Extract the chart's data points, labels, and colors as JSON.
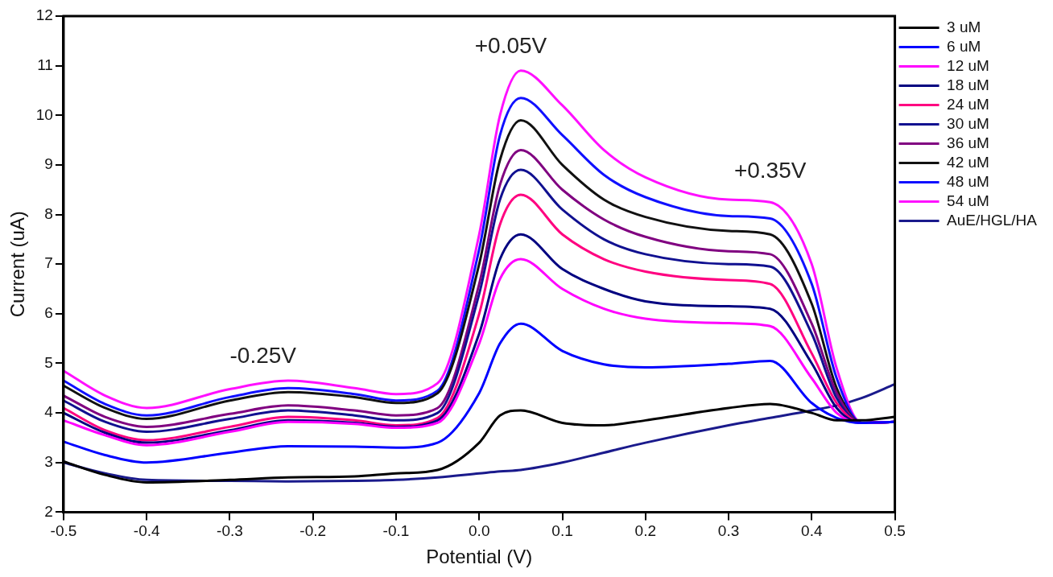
{
  "chart_data": {
    "type": "line",
    "xlabel": "Potential (V)",
    "ylabel": "Current (uA)",
    "x": [
      -0.5,
      -0.45,
      -0.4,
      -0.3,
      -0.23,
      -0.15,
      -0.1,
      -0.05,
      0,
      0.025,
      0.05,
      0.1,
      0.15,
      0.2,
      0.3,
      0.35,
      0.4,
      0.43,
      0.46,
      0.5
    ],
    "xlim": [
      -0.5,
      0.5
    ],
    "xticks": [
      {
        "value": -0.5,
        "label": "-0.5"
      },
      {
        "value": -0.4,
        "label": "-0.4"
      },
      {
        "value": -0.3,
        "label": "-0.3"
      },
      {
        "value": -0.2,
        "label": "-0.2"
      },
      {
        "value": -0.1,
        "label": "-0.1"
      },
      {
        "value": 0,
        "label": "0.0"
      },
      {
        "value": 0.1,
        "label": "0.1"
      },
      {
        "value": 0.2,
        "label": "0.2"
      },
      {
        "value": 0.3,
        "label": "0.3"
      },
      {
        "value": 0.4,
        "label": "0.4"
      },
      {
        "value": 0.5,
        "label": "0.5"
      }
    ],
    "ylim": [
      2,
      12
    ],
    "yticks": [
      2,
      3,
      4,
      5,
      6,
      7,
      8,
      9,
      10,
      11,
      12
    ],
    "grid": false,
    "legend": "right",
    "marker": "none",
    "line_style": "solid",
    "annotations": [
      "-0.25V",
      "+0.05V",
      "+0.35V"
    ],
    "series": [
      {
        "name": "3 uM",
        "color": "#000000",
        "values": [
          3.02,
          2.75,
          2.6,
          2.65,
          2.7,
          2.72,
          2.78,
          2.85,
          3.4,
          3.95,
          4.05,
          3.8,
          3.75,
          3.85,
          4.1,
          4.18,
          4.0,
          3.85,
          3.85,
          3.92
        ]
      },
      {
        "name": "6 uM",
        "color": "#0000ff",
        "values": [
          3.42,
          3.15,
          3.0,
          3.2,
          3.33,
          3.32,
          3.3,
          3.4,
          4.4,
          5.4,
          5.8,
          5.25,
          4.98,
          4.92,
          4.99,
          5.05,
          4.2,
          3.9,
          3.8,
          3.82
        ]
      },
      {
        "name": "12 uM",
        "color": "#ff00ff",
        "values": [
          3.85,
          3.55,
          3.35,
          3.62,
          3.82,
          3.78,
          3.7,
          3.8,
          5.4,
          6.7,
          7.1,
          6.5,
          6.1,
          5.9,
          5.81,
          5.75,
          4.7,
          4.0,
          3.8,
          3.82
        ]
      },
      {
        "name": "18 uM",
        "color": "#000080",
        "values": [
          4.0,
          3.6,
          3.4,
          3.65,
          3.85,
          3.8,
          3.72,
          3.85,
          5.6,
          7.1,
          7.6,
          6.9,
          6.5,
          6.25,
          6.15,
          6.1,
          5.0,
          4.1,
          3.8,
          3.82
        ]
      },
      {
        "name": "24 uM",
        "color": "#ff0080",
        "values": [
          4.1,
          3.65,
          3.45,
          3.72,
          3.92,
          3.85,
          3.75,
          3.9,
          6.0,
          7.8,
          8.4,
          7.6,
          7.1,
          6.85,
          6.68,
          6.6,
          5.2,
          4.2,
          3.8,
          3.82
        ]
      },
      {
        "name": "30 uM",
        "color": "#101090",
        "values": [
          4.25,
          3.82,
          3.62,
          3.88,
          4.05,
          3.95,
          3.85,
          4.0,
          6.4,
          8.3,
          8.9,
          8.1,
          7.5,
          7.2,
          7.0,
          6.95,
          5.6,
          4.3,
          3.8,
          3.82
        ]
      },
      {
        "name": "36 uM",
        "color": "#800080",
        "values": [
          4.35,
          3.92,
          3.72,
          3.98,
          4.15,
          4.05,
          3.95,
          4.1,
          6.6,
          8.6,
          9.3,
          8.5,
          7.9,
          7.55,
          7.26,
          7.2,
          5.8,
          4.4,
          3.8,
          3.82
        ]
      },
      {
        "name": "42 uM",
        "color": "#111111",
        "values": [
          4.55,
          4.1,
          3.88,
          4.25,
          4.42,
          4.32,
          4.2,
          4.4,
          7.0,
          9.1,
          9.9,
          9.0,
          8.3,
          7.95,
          7.67,
          7.6,
          6.2,
          4.5,
          3.8,
          3.82
        ]
      },
      {
        "name": "48 uM",
        "color": "#1010ff",
        "values": [
          4.65,
          4.18,
          3.95,
          4.32,
          4.5,
          4.38,
          4.25,
          4.45,
          7.3,
          9.6,
          10.35,
          9.6,
          8.8,
          8.35,
          7.97,
          7.92,
          6.6,
          4.7,
          3.8,
          3.82
        ]
      },
      {
        "name": "54 uM",
        "color": "#ff10ff",
        "values": [
          4.85,
          4.35,
          4.1,
          4.48,
          4.65,
          4.5,
          4.38,
          4.6,
          7.6,
          10.0,
          10.9,
          10.2,
          9.3,
          8.75,
          8.3,
          8.25,
          7.0,
          4.9,
          3.8,
          3.82
        ]
      },
      {
        "name": "AuE/HGL/HA",
        "color": "#1a1a8c",
        "values": [
          3.0,
          2.78,
          2.65,
          2.63,
          2.62,
          2.63,
          2.65,
          2.7,
          2.78,
          2.82,
          2.85,
          3.0,
          3.2,
          3.4,
          3.75,
          3.9,
          4.05,
          4.15,
          4.3,
          4.58
        ]
      }
    ]
  }
}
